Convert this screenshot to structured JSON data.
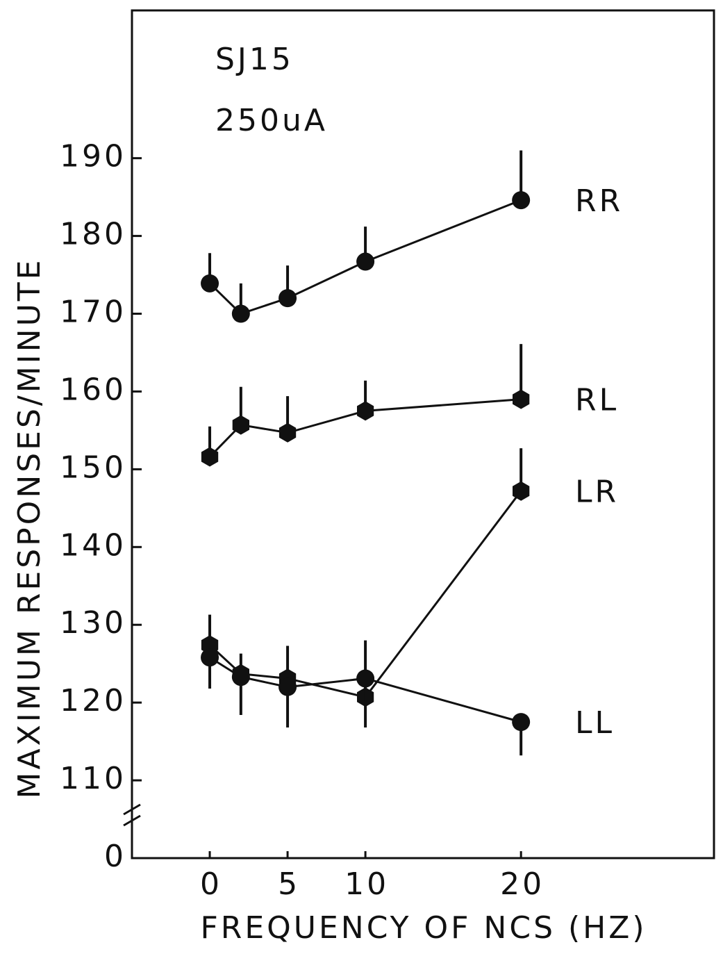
{
  "chart_data": {
    "type": "line",
    "annotations": [
      "SJ15",
      "250uA"
    ],
    "xlabel": "FREQUENCY OF NCS (HZ)",
    "ylabel": "MAXIMUM RESPONSES/MINUTE",
    "x": [
      0,
      2,
      5,
      10,
      20
    ],
    "xlim": [
      -5,
      32.4
    ],
    "xticks": [
      0,
      5,
      10,
      20
    ],
    "ylim": [
      100,
      209
    ],
    "yticks": [
      0,
      110,
      120,
      130,
      140,
      150,
      160,
      170,
      180,
      190
    ],
    "axis_break": true,
    "series": [
      {
        "name": "RR",
        "color": "#111111",
        "marker": "circle",
        "error_direction": "up",
        "values": [
          173.9,
          170.0,
          172.0,
          176.7,
          184.6
        ],
        "errors": [
          3.9,
          3.9,
          4.2,
          4.5,
          6.4
        ]
      },
      {
        "name": "RL",
        "color": "#111111",
        "marker": "hexagon",
        "error_direction": "up",
        "values": [
          151.6,
          155.7,
          154.7,
          157.5,
          159.0
        ],
        "errors": [
          3.9,
          4.9,
          4.7,
          3.9,
          7.1
        ]
      },
      {
        "name": "LR",
        "color": "#111111",
        "marker": "hexagon",
        "error_direction": "up",
        "values": [
          127.4,
          123.7,
          123.1,
          120.7,
          147.2
        ],
        "errors": [
          3.9,
          2.6,
          4.2,
          7.3,
          5.5
        ]
      },
      {
        "name": "LL",
        "color": "#111111",
        "marker": "circle",
        "error_direction": "down",
        "values": [
          125.8,
          123.3,
          122.0,
          123.1,
          117.5
        ],
        "errors": [
          4.0,
          4.9,
          5.2,
          6.3,
          4.3
        ]
      }
    ]
  }
}
